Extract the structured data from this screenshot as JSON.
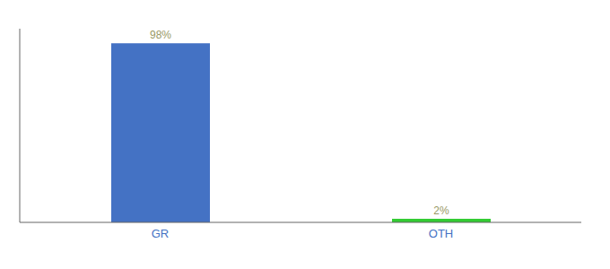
{
  "chart_data": {
    "type": "bar",
    "categories": [
      "GR",
      "OTH"
    ],
    "values": [
      98,
      2
    ],
    "value_labels": [
      "98%",
      "2%"
    ],
    "colors": [
      "#4472C4",
      "#33CC33"
    ],
    "ylim": [
      0,
      106
    ],
    "data_labels": true,
    "tick_labels": "x"
  }
}
